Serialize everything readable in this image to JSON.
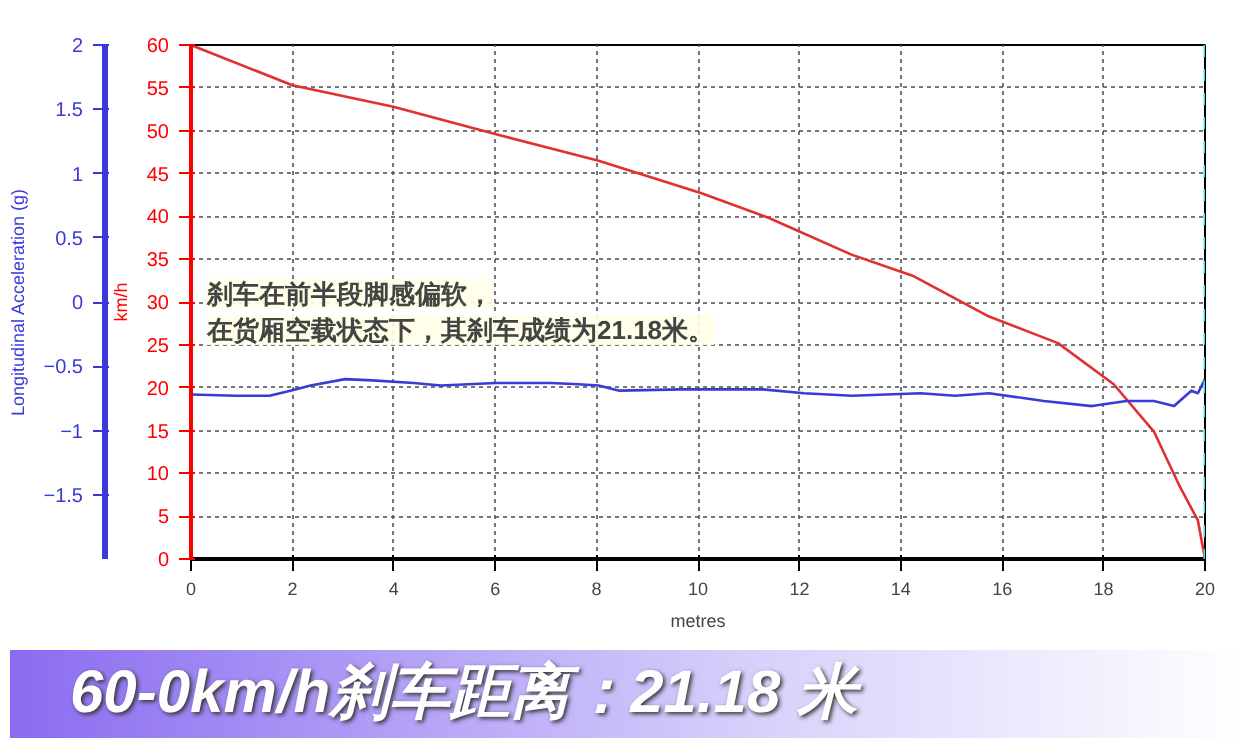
{
  "chart_data": {
    "type": "line",
    "title": "60-0km/h刹车距离：21.18 米",
    "xlabel": "metres",
    "ylabel": "km/h",
    "y2label": "Longitudinal Acceleration (g)",
    "annotations": [
      "刹车在前半段脚感偏软，",
      "在货厢空载状态下，其刹车成绩为21.18米。"
    ],
    "xlim": [
      0,
      20
    ],
    "xticks": [
      0,
      2,
      4,
      6,
      8,
      10,
      12,
      14,
      16,
      18,
      20
    ],
    "ylim": [
      0,
      60
    ],
    "yticks": [
      0,
      5,
      10,
      15,
      20,
      25,
      30,
      35,
      40,
      45,
      50,
      55,
      60
    ],
    "y2lim": [
      -2,
      2
    ],
    "y2ticks": [
      -1.5,
      -1,
      -0.5,
      0,
      0.5,
      1,
      1.5,
      2
    ],
    "grid": true,
    "marker": "none",
    "line_style": "solid",
    "ref_lines": [
      {
        "axis": "x",
        "value": 20,
        "color": "#40e0e0",
        "line_style": "dashed"
      }
    ],
    "series": [
      {
        "color": "#e03030",
        "x": [
          0,
          2,
          3.99,
          6,
          8.04,
          10.07,
          11.4,
          13.04,
          14.26,
          15.74,
          17.1,
          18.2,
          19,
          19.5,
          19.86,
          20
        ],
        "values": [
          60,
          55.3,
          52.8,
          49.6,
          46.5,
          42.7,
          39.8,
          35.5,
          33,
          28.3,
          25.2,
          20.4,
          14.8,
          8.5,
          4.5,
          0
        ]
      },
      {
        "color": "#3a3ad8",
        "axis": "y2",
        "x": [
          0,
          0.88,
          1.55,
          1.96,
          2.36,
          3.04,
          3.58,
          4.39,
          4.93,
          6.01,
          7.09,
          7.64,
          8.04,
          8.45,
          9.66,
          11.28,
          12.09,
          13.04,
          14.39,
          15.07,
          15.74,
          16.82,
          17.77,
          18.45,
          18.99,
          19.39,
          19.73,
          19.86,
          20
        ],
        "values": [
          -0.72,
          -0.73,
          -0.73,
          -0.69,
          -0.65,
          -0.6,
          -0.61,
          -0.63,
          -0.65,
          -0.63,
          -0.63,
          -0.64,
          -0.65,
          -0.69,
          -0.68,
          -0.68,
          -0.71,
          -0.73,
          -0.71,
          -0.73,
          -0.71,
          -0.77,
          -0.81,
          -0.77,
          -0.77,
          -0.81,
          -0.69,
          -0.71,
          -0.6
        ]
      }
    ]
  }
}
